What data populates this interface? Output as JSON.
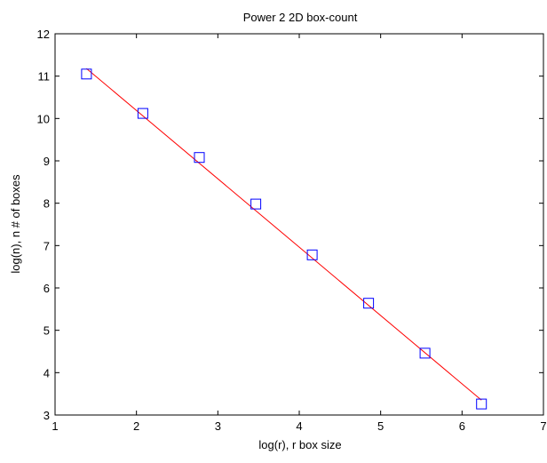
{
  "chart_data": {
    "type": "scatter",
    "title": "Power 2 2D box-count",
    "xlabel": "log(r), r box size",
    "ylabel": "log(n), n # of boxes",
    "xlim": [
      1,
      7
    ],
    "ylim": [
      3,
      12
    ],
    "xticks": [
      "1",
      "2",
      "3",
      "4",
      "5",
      "6",
      "7"
    ],
    "yticks": [
      "3",
      "4",
      "5",
      "6",
      "7",
      "8",
      "9",
      "10",
      "11",
      "12"
    ],
    "grid": false,
    "series": [
      {
        "type": "scatter",
        "marker": "square",
        "color": "#0000ff",
        "x": [
          1.386,
          2.079,
          2.773,
          3.466,
          4.159,
          4.852,
          5.545,
          6.238
        ],
        "y": [
          11.05,
          10.12,
          9.08,
          7.98,
          6.78,
          5.64,
          4.46,
          3.26
        ]
      },
      {
        "type": "line",
        "color": "#ff0000",
        "x": [
          1.386,
          6.238
        ],
        "y": [
          11.18,
          3.35
        ]
      }
    ]
  }
}
